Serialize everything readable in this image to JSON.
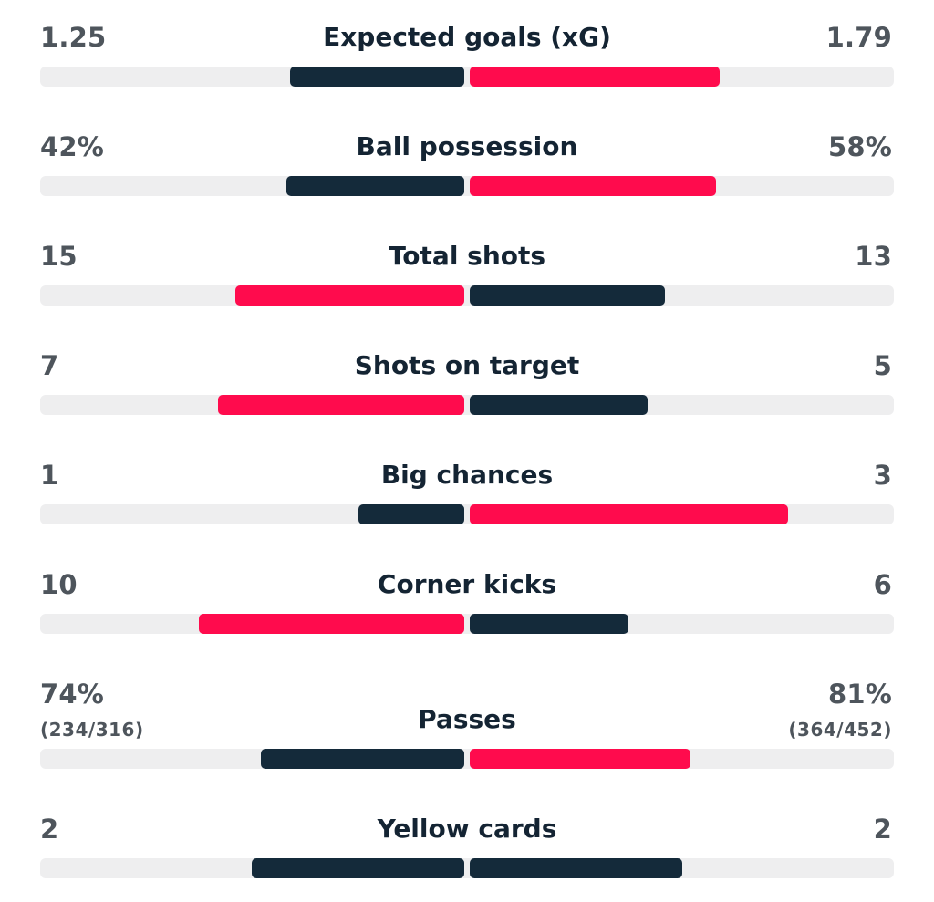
{
  "colors": {
    "dark": "#142a3a",
    "accent": "#ff0b4d",
    "track": "#eeeeef"
  },
  "stats": [
    {
      "label": "Expected goals (xG)",
      "home": "1.25",
      "away": "1.79",
      "home_share": 0.41,
      "away_share": 0.59,
      "home_color": "dark",
      "away_color": "accent"
    },
    {
      "label": "Ball possession",
      "home": "42%",
      "away": "58%",
      "home_share": 0.42,
      "away_share": 0.58,
      "home_color": "dark",
      "away_color": "accent"
    },
    {
      "label": "Total shots",
      "home": "15",
      "away": "13",
      "home_share": 0.54,
      "away_share": 0.46,
      "home_color": "accent",
      "away_color": "dark"
    },
    {
      "label": "Shots on target",
      "home": "7",
      "away": "5",
      "home_share": 0.58,
      "away_share": 0.42,
      "home_color": "accent",
      "away_color": "dark"
    },
    {
      "label": "Big chances",
      "home": "1",
      "away": "3",
      "home_share": 0.25,
      "away_share": 0.75,
      "home_color": "dark",
      "away_color": "accent"
    },
    {
      "label": "Corner kicks",
      "home": "10",
      "away": "6",
      "home_share": 0.625,
      "away_share": 0.375,
      "home_color": "accent",
      "away_color": "dark"
    },
    {
      "label": "Passes",
      "home": "74%",
      "away": "81%",
      "home_sub": "(234/316)",
      "away_sub": "(364/452)",
      "home_share": 0.48,
      "away_share": 0.52,
      "home_color": "dark",
      "away_color": "accent"
    },
    {
      "label": "Yellow cards",
      "home": "2",
      "away": "2",
      "home_share": 0.5,
      "away_share": 0.5,
      "home_color": "dark",
      "away_color": "dark"
    }
  ]
}
